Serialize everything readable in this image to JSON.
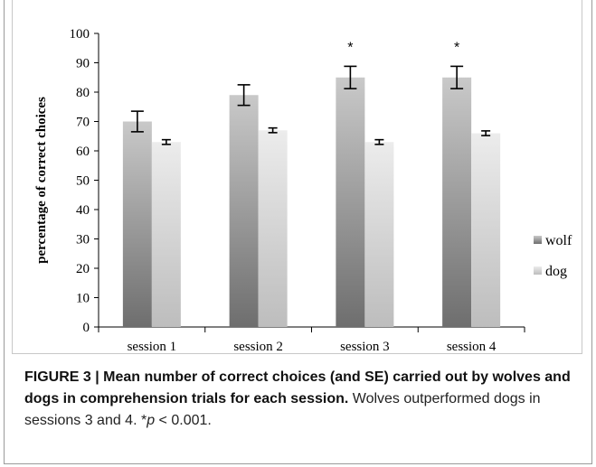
{
  "chart_data": {
    "type": "bar",
    "categories": [
      "session 1",
      "session 2",
      "session 3",
      "session 4"
    ],
    "series": [
      {
        "name": "wolf",
        "values": [
          70,
          79,
          85,
          85
        ],
        "errors": [
          3.5,
          3.5,
          3.8,
          3.8
        ],
        "color": "#7a7a7a"
      },
      {
        "name": "dog",
        "values": [
          63,
          67,
          63,
          66
        ],
        "errors": [
          0.8,
          0.8,
          0.8,
          0.8
        ],
        "color": "#c4c4c4"
      }
    ],
    "ylabel": "percentage of correct choices",
    "ylim": [
      0,
      100
    ],
    "yticks": [
      "0",
      "10",
      "20",
      "30",
      "40",
      "50",
      "60",
      "70",
      "80",
      "90",
      "100"
    ],
    "annotations": [
      "",
      "",
      "*",
      "*"
    ],
    "legend_position": "right",
    "grid": false
  },
  "caption": {
    "lead": "FIGURE 3 | Mean number of correct choices (and SE) carried out by wolves and dogs in comprehension trials for each session.",
    "body_1": " Wolves outperformed dogs in sessions 3 and 4. *",
    "body_p": "p",
    "body_2": " < 0.001."
  }
}
